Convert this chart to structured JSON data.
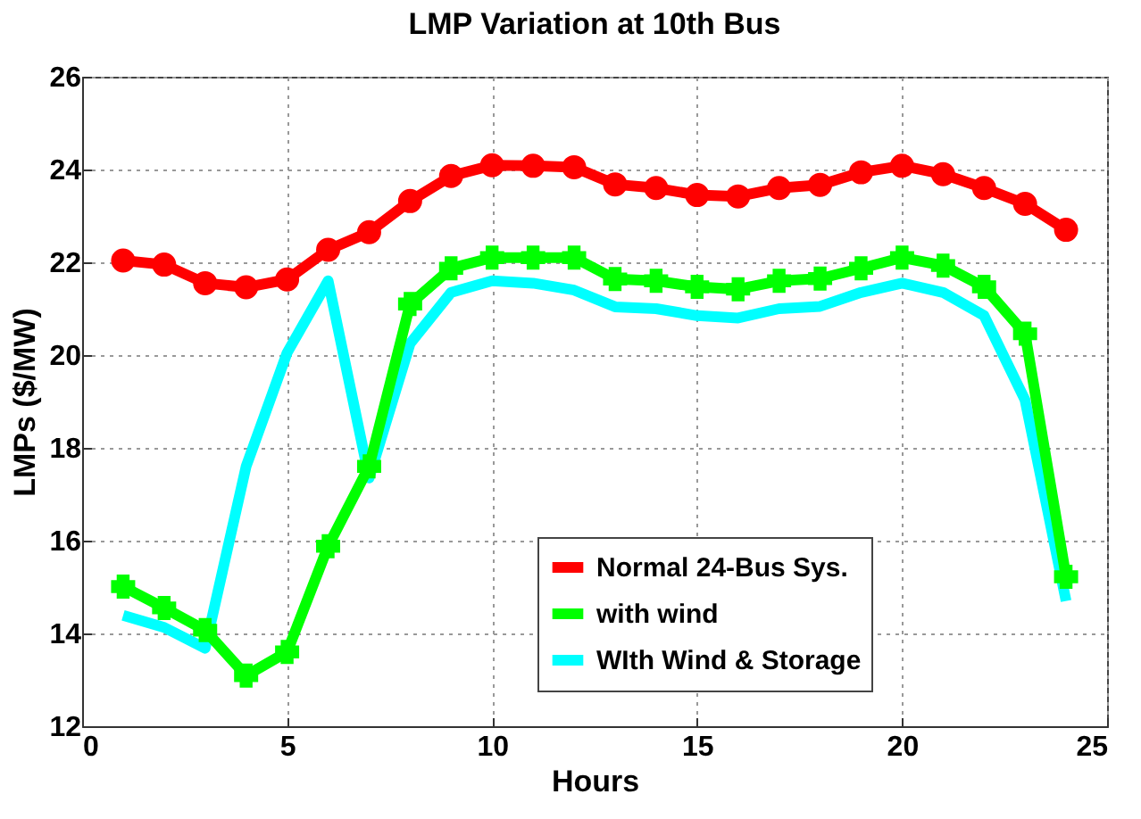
{
  "chart_data": {
    "type": "line",
    "title": "LMP Variation at 10th Bus",
    "xlabel": "Hours",
    "ylabel": "LMPs ($/MW)",
    "x": [
      1,
      2,
      3,
      4,
      5,
      6,
      7,
      8,
      9,
      10,
      11,
      12,
      13,
      14,
      15,
      16,
      17,
      18,
      19,
      20,
      21,
      22,
      23,
      24
    ],
    "xlim": [
      0,
      25
    ],
    "xticks": [
      0,
      5,
      10,
      15,
      20,
      25
    ],
    "ylim": [
      12,
      26
    ],
    "yticks": [
      12,
      14,
      16,
      18,
      20,
      22,
      24,
      26
    ],
    "grid": true,
    "legend": "bottom right",
    "series": [
      {
        "name": "Normal 24-Bus Sys.",
        "color": "#ff0000",
        "marker": "circle",
        "values": [
          22.04,
          21.95,
          21.55,
          21.46,
          21.63,
          22.27,
          22.65,
          23.32,
          23.86,
          24.09,
          24.08,
          24.05,
          23.68,
          23.6,
          23.45,
          23.42,
          23.6,
          23.67,
          23.94,
          24.08,
          23.9,
          23.6,
          23.26,
          22.7
        ]
      },
      {
        "name": "with wind",
        "color": "#00ff00",
        "marker": "cross",
        "values": [
          15.01,
          14.55,
          14.07,
          13.09,
          13.6,
          15.88,
          17.6,
          21.1,
          21.87,
          22.1,
          22.1,
          22.1,
          21.64,
          21.6,
          21.47,
          21.42,
          21.6,
          21.65,
          21.87,
          22.1,
          21.93,
          21.47,
          20.46,
          15.22
        ]
      },
      {
        "name": "WIth Wind & Storage",
        "color": "#00ffff",
        "marker": "none",
        "values": [
          14.39,
          14.13,
          13.68,
          17.6,
          20.05,
          21.6,
          17.35,
          20.25,
          21.35,
          21.6,
          21.55,
          21.4,
          21.04,
          21.0,
          20.85,
          20.8,
          21.0,
          21.05,
          21.35,
          21.55,
          21.35,
          20.85,
          19.03,
          14.7
        ]
      }
    ]
  }
}
